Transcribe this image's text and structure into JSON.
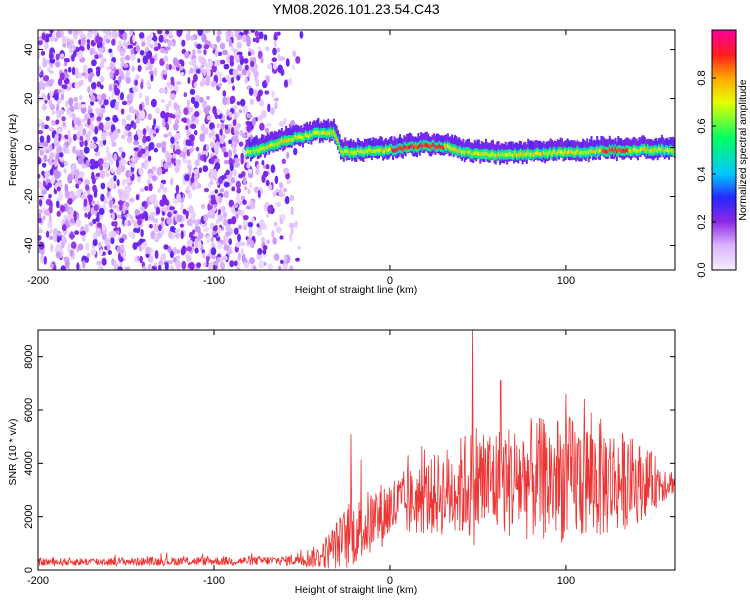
{
  "title": "YM08.2026.101.23.54.C43",
  "chart_data": [
    {
      "type": "heatmap",
      "xlabel": "Height of straight line (km)",
      "ylabel": "Frequency (Hz)",
      "xlim": [
        -200,
        162
      ],
      "ylim": [
        -50,
        48
      ],
      "xticks": [
        -200,
        -100,
        0,
        100
      ],
      "yticks": [
        -40,
        -20,
        0,
        20,
        40
      ],
      "colorbar": {
        "label": "Normalized spectral amplitude",
        "range": [
          0,
          1
        ],
        "ticks": [
          0.0,
          0.2,
          0.4,
          0.6,
          0.8
        ]
      },
      "ridge": {
        "description_points_x": [
          -80,
          -60,
          -40,
          -32,
          -28,
          0,
          20,
          35,
          40,
          60,
          100,
          130,
          162
        ],
        "description_points_y": [
          -2,
          3,
          6,
          6,
          -2,
          -1,
          1,
          0,
          -2,
          -3,
          -2,
          -1,
          -1
        ]
      }
    },
    {
      "type": "line",
      "xlabel": "Height of straight line (km)",
      "ylabel": "SNR (10 * v/v)",
      "xlim": [
        -200,
        162
      ],
      "ylim": [
        0,
        9000
      ],
      "xticks": [
        -200,
        -100,
        0,
        100
      ],
      "yticks": [
        0,
        2000,
        4000,
        6000,
        8000
      ],
      "series_color": "#ee3333",
      "envelope": {
        "x": [
          -200,
          -60,
          -40,
          -25,
          -10,
          0,
          20,
          40,
          48,
          60,
          80,
          100,
          120,
          140,
          162
        ],
        "base": [
          300,
          350,
          500,
          1200,
          1800,
          2300,
          2700,
          3100,
          3300,
          3300,
          3400,
          3400,
          3400,
          3300,
          3300
        ],
        "noise": [
          150,
          180,
          450,
          1200,
          1300,
          1200,
          1400,
          1900,
          2400,
          2100,
          2300,
          2400,
          2300,
          1600,
          400
        ]
      },
      "peaks": [
        {
          "x": -22,
          "y": 5100
        },
        {
          "x": 47,
          "y": 9000
        },
        {
          "x": 63,
          "y": 7100
        },
        {
          "x": 100,
          "y": 6600
        }
      ]
    }
  ]
}
